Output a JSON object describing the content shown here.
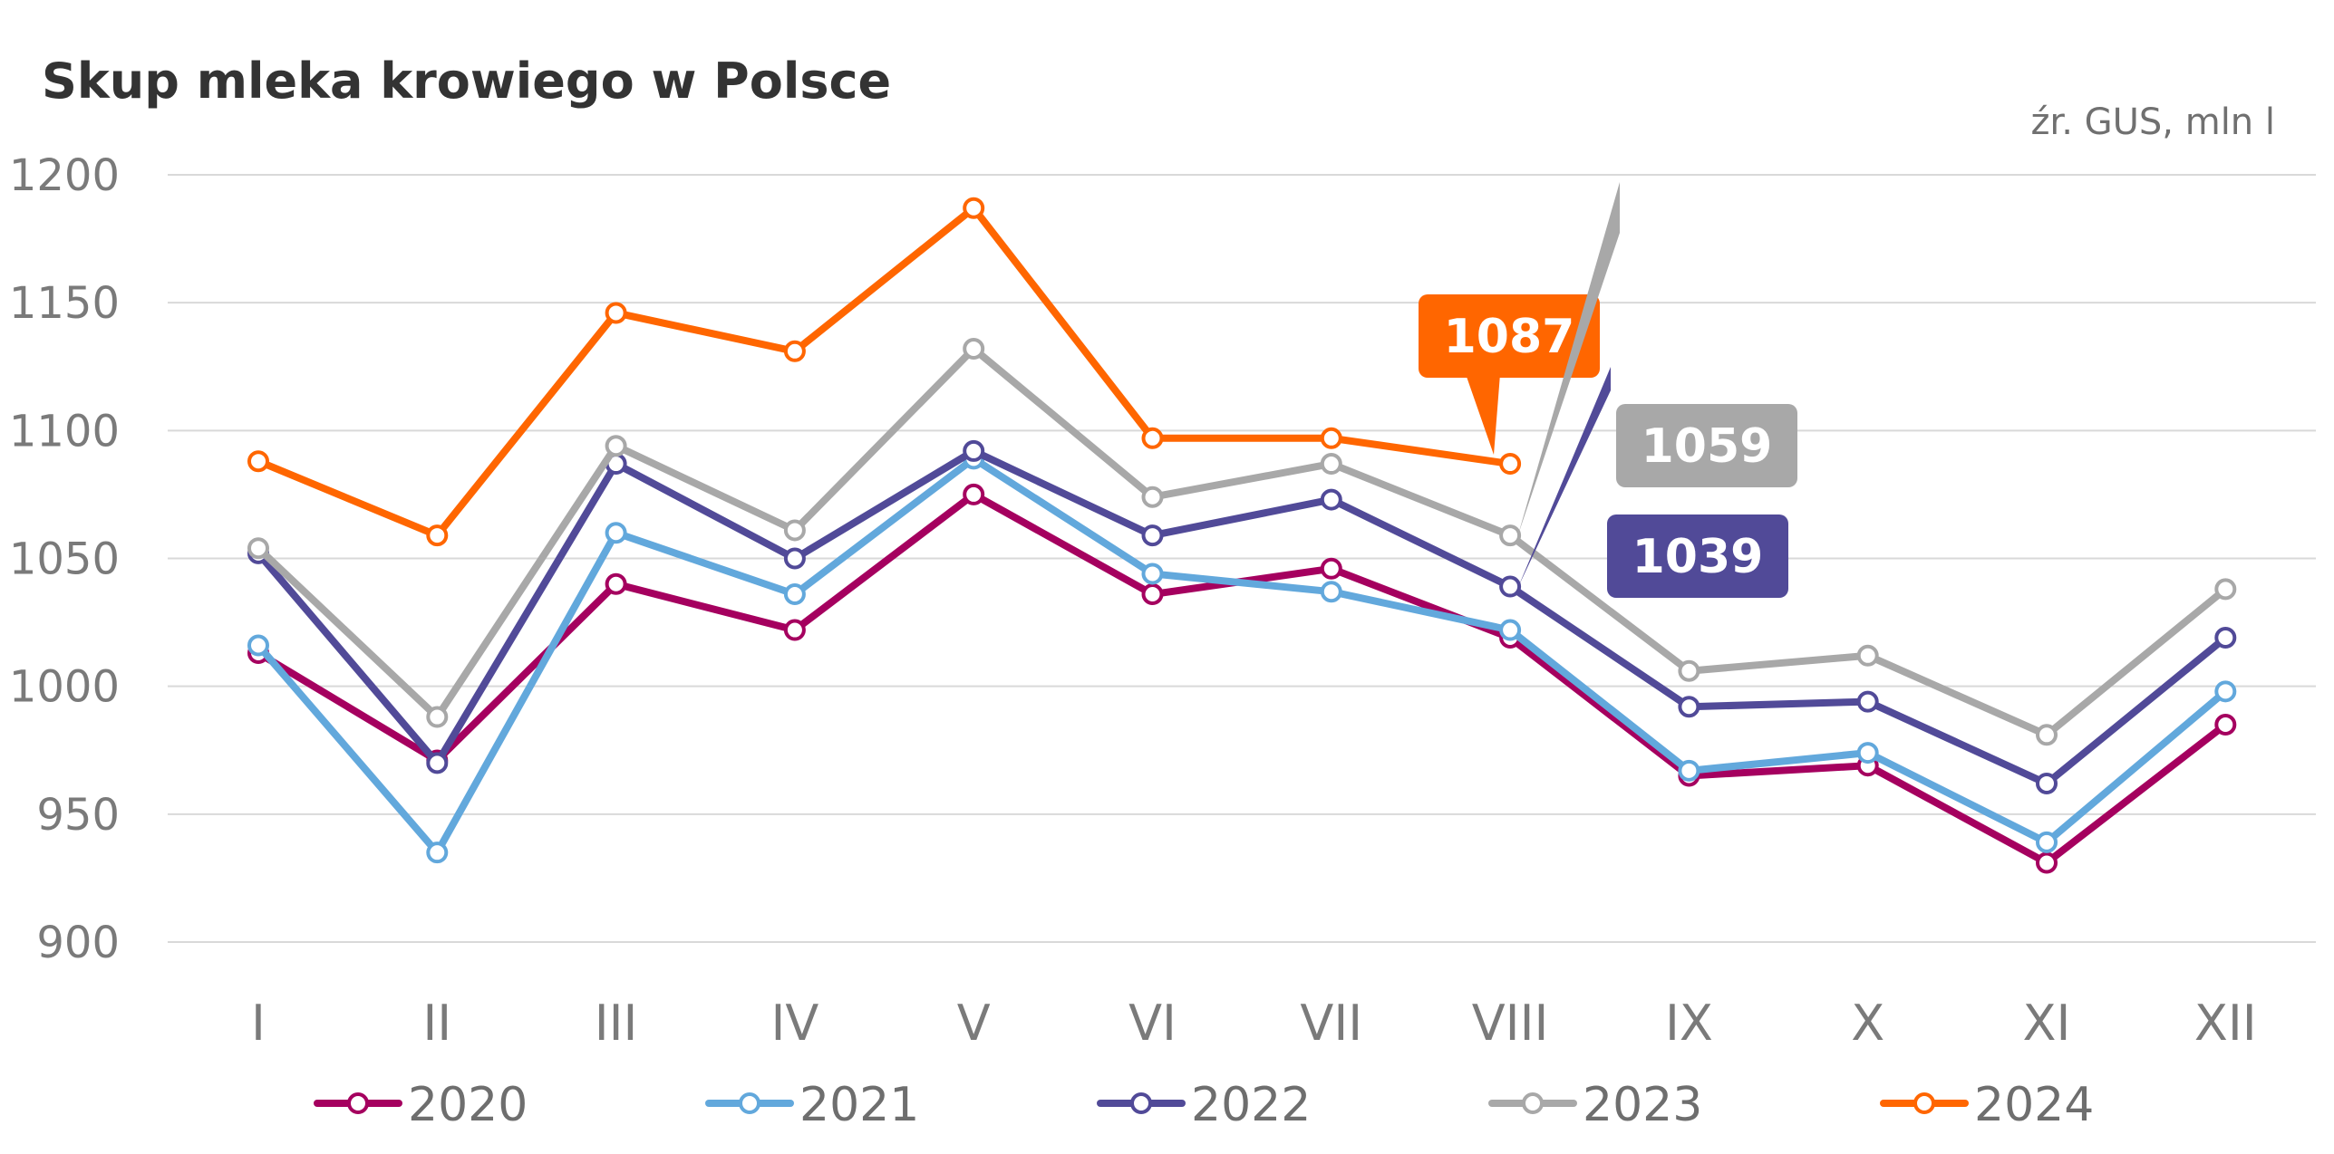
{
  "chart_data": {
    "type": "line",
    "title": "Skup mleka krowiego w Polsce",
    "source_note": "źr. GUS, mln l",
    "categories": [
      "I",
      "II",
      "III",
      "IV",
      "V",
      "VI",
      "VII",
      "VIII",
      "IX",
      "X",
      "XI",
      "XII"
    ],
    "ylim": [
      900,
      1200
    ],
    "yticks": [
      1200,
      1150,
      1100,
      1050,
      1000,
      950,
      900
    ],
    "grid": true,
    "legend_position": "bottom",
    "series": [
      {
        "name": "2020",
        "color": "#A5005F",
        "values": [
          1013,
          971,
          1040,
          1022,
          1075,
          1036,
          1046,
          1019,
          965,
          969,
          931,
          985
        ]
      },
      {
        "name": "2021",
        "color": "#62A8DC",
        "values": [
          1016,
          935,
          1060,
          1036,
          1089,
          1044,
          1037,
          1022,
          967,
          974,
          939,
          998
        ]
      },
      {
        "name": "2022",
        "color": "#514A98",
        "values": [
          1052,
          970,
          1087,
          1050,
          1092,
          1059,
          1073,
          1039,
          992,
          994,
          962,
          1019
        ]
      },
      {
        "name": "2023",
        "color": "#A8A8A8",
        "values": [
          1054,
          988,
          1094,
          1061,
          1132,
          1074,
          1087,
          1059,
          1006,
          1012,
          981,
          1038
        ]
      },
      {
        "name": "2024",
        "color": "#FF6600",
        "values": [
          1088,
          1059,
          1146,
          1131,
          1187,
          1097,
          1097,
          1087,
          null,
          null,
          null,
          null
        ]
      }
    ],
    "annotations": [
      {
        "text": "1087",
        "series": "2024",
        "category": "VIII",
        "color": "#FF6600"
      },
      {
        "text": "1059",
        "series": "2023",
        "category": "VIII",
        "color": "#A8A8A8"
      },
      {
        "text": "1039",
        "series": "2022",
        "category": "VIII",
        "color": "#514A98"
      }
    ]
  }
}
